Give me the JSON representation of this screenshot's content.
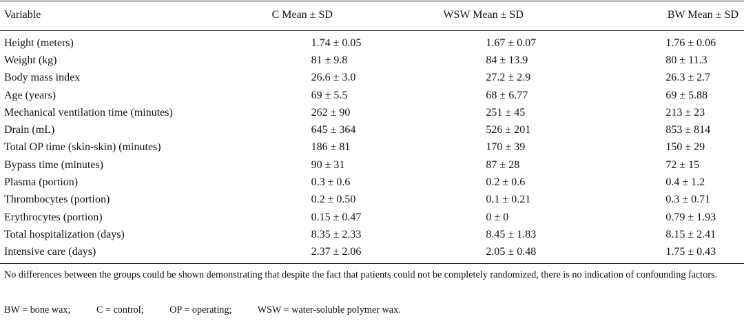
{
  "table": {
    "headers": [
      "Variable",
      "C Mean ± SD",
      "WSW Mean ± SD",
      "BW Mean ± SD"
    ],
    "rows": [
      {
        "variable": "Height (meters)",
        "c": "1.74 ± 0.05",
        "wsw": "1.67 ± 0.07",
        "bw": "1.76 ± 0.06"
      },
      {
        "variable": "Weight (kg)",
        "c": "81 ± 9.8",
        "wsw": "84 ± 13.9",
        "bw": "80 ± 11.3"
      },
      {
        "variable": "Body mass index",
        "c": "26.6 ± 3.0",
        "wsw": "27.2 ± 2.9",
        "bw": "26.3 ± 2.7"
      },
      {
        "variable": "Age (years)",
        "c": "69 ± 5.5",
        "wsw": "68 ± 6.77",
        "bw": "69 ± 5.88"
      },
      {
        "variable": "Mechanical ventilation time (minutes)",
        "c": "262 ± 90",
        "wsw": "251 ± 45",
        "bw": "213 ± 23"
      },
      {
        "variable": "Drain (mL)",
        "c": "645 ± 364",
        "wsw": "526 ± 201",
        "bw": "853 ± 814"
      },
      {
        "variable": "Total OP time (skin-skin) (minutes)",
        "c": "186 ± 81",
        "wsw": "170 ± 39",
        "bw": "150 ± 29"
      },
      {
        "variable": "Bypass time (minutes)",
        "c": "90 ± 31",
        "wsw": "87 ± 28",
        "bw": "72 ± 15"
      },
      {
        "variable": "Plasma (portion)",
        "c": "0.3 ± 0.6",
        "wsw": "0.2 ± 0.6",
        "bw": "0.4 ± 1.2"
      },
      {
        "variable": "Thrombocytes (portion)",
        "c": "0.2 ± 0.50",
        "wsw": "0.1 ± 0.21",
        "bw": "0.3 ± 0.71"
      },
      {
        "variable": "Erythrocytes (portion)",
        "c": "0.15 ± 0.47",
        "wsw": "0 ± 0",
        "bw": "0.79 ± 1.93"
      },
      {
        "variable": "Total hospitalization (days)",
        "c": "8.35 ± 2.33",
        "wsw": "8.45 ± 1.83",
        "bw": "8.15 ± 2.41"
      },
      {
        "variable": "Intensive care (days)",
        "c": "2.37 ± 2.06",
        "wsw": "2.05 ± 0.48",
        "bw": "1.75 ± 0.43"
      }
    ]
  },
  "footnote": "No differences between the groups could be shown demonstrating that despite the fact that patients could not be completely randomized, there is no indication of confounding factors.",
  "abbreviations": [
    "BW = bone wax;",
    "C = control;",
    "OP = operating;",
    "WSW = water-soluble polymer wax."
  ]
}
